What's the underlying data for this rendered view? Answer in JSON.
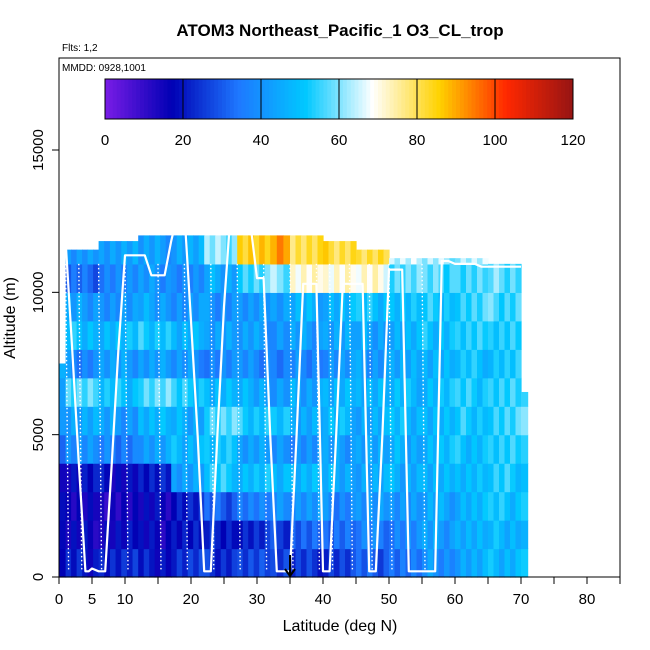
{
  "chart_data": {
    "type": "heatmap",
    "title": "ATOM3 Northeast_Pacific_1 O3_CL_trop",
    "annotations": [
      "Flts: 1,2",
      "MMDD: 0928,1001"
    ],
    "xlabel": "Latitude (deg N)",
    "ylabel": "Altitude (m)",
    "xlim": [
      0,
      85
    ],
    "ylim": [
      0,
      17500
    ],
    "x_ticks": [
      0,
      5,
      10,
      20,
      30,
      40,
      50,
      60,
      70,
      80
    ],
    "y_ticks": [
      0,
      5000,
      10000,
      15000
    ],
    "colorbar": {
      "range": [
        0,
        120
      ],
      "ticks": [
        0,
        20,
        40,
        60,
        80,
        100,
        120
      ],
      "colors": [
        "#7a1ce6",
        "#0000b4",
        "#1e78ff",
        "#00c8ff",
        "#ffffff",
        "#ffd200",
        "#ff2800",
        "#961414"
      ]
    },
    "marker": {
      "latitude": 35,
      "direction": "down"
    },
    "columns": [
      {
        "x0": 0,
        "x1": 1,
        "ytop": 7500,
        "profile": [
          22,
          18,
          14,
          16,
          28,
          44,
          40,
          50,
          52,
          48,
          40,
          34
        ]
      },
      {
        "x0": 1,
        "x1": 6,
        "ytop": 11500,
        "profile": [
          20,
          16,
          14,
          18,
          40,
          45,
          58,
          38,
          50,
          42,
          32,
          40
        ]
      },
      {
        "x0": 6,
        "x1": 12,
        "ytop": 11800,
        "profile": [
          22,
          18,
          14,
          18,
          36,
          42,
          50,
          42,
          48,
          40,
          38,
          44
        ]
      },
      {
        "x0": 12,
        "x1": 17,
        "ytop": 12500,
        "profile": [
          20,
          16,
          16,
          20,
          42,
          48,
          58,
          44,
          52,
          44,
          40,
          42
        ]
      },
      {
        "x0": 17,
        "x1": 22,
        "ytop": 12800,
        "profile": [
          24,
          20,
          22,
          44,
          48,
          46,
          52,
          40,
          46,
          40,
          38,
          45
        ]
      },
      {
        "x0": 22,
        "x1": 27,
        "ytop": 12800,
        "profile": [
          24,
          22,
          30,
          52,
          50,
          56,
          48,
          38,
          44,
          40,
          45,
          60
        ]
      },
      {
        "x0": 27,
        "x1": 32,
        "ytop": 12500,
        "profile": [
          26,
          22,
          36,
          50,
          44,
          52,
          46,
          38,
          42,
          40,
          55,
          85
        ]
      },
      {
        "x0": 32,
        "x1": 35,
        "ytop": 12400,
        "profile": [
          28,
          26,
          38,
          46,
          40,
          50,
          42,
          36,
          42,
          44,
          60,
          90
        ]
      },
      {
        "x0": 35,
        "x1": 40,
        "ytop": 12000,
        "profile": [
          24,
          30,
          40,
          48,
          40,
          46,
          44,
          38,
          42,
          46,
          70,
          80
        ]
      },
      {
        "x0": 40,
        "x1": 45,
        "ytop": 11800,
        "profile": [
          26,
          34,
          38,
          46,
          42,
          48,
          46,
          40,
          44,
          48,
          72,
          82
        ]
      },
      {
        "x0": 45,
        "x1": 50,
        "ytop": 11500,
        "profile": [
          30,
          36,
          40,
          44,
          44,
          46,
          48,
          42,
          44,
          50,
          70,
          80
        ]
      },
      {
        "x0": 50,
        "x1": 55,
        "ytop": 11200,
        "profile": [
          34,
          38,
          42,
          46,
          46,
          48,
          48,
          44,
          46,
          50,
          58,
          66
        ]
      },
      {
        "x0": 55,
        "x1": 60,
        "ytop": 11200,
        "profile": [
          40,
          42,
          44,
          46,
          48,
          48,
          50,
          48,
          50,
          52,
          56,
          62
        ]
      },
      {
        "x0": 60,
        "x1": 65,
        "ytop": 11200,
        "profile": [
          44,
          46,
          48,
          50,
          50,
          52,
          52,
          50,
          52,
          54,
          56,
          64
        ]
      },
      {
        "x0": 65,
        "x1": 70,
        "ytop": 11000,
        "profile": [
          48,
          48,
          50,
          52,
          52,
          54,
          54,
          52,
          54,
          56,
          58,
          62
        ]
      },
      {
        "x0": 70,
        "x1": 71,
        "ytop": 6500,
        "profile": [
          50,
          50,
          52,
          54,
          54,
          56,
          56,
          54,
          56,
          58,
          60,
          62
        ]
      }
    ],
    "flight_path": {
      "x": [
        0,
        0.5,
        1,
        2,
        3,
        4,
        4.5,
        5,
        6,
        7,
        8,
        9,
        10,
        11,
        12,
        13,
        14,
        15,
        16,
        17,
        18,
        19,
        20,
        21,
        22,
        23,
        24,
        25,
        26,
        27,
        28,
        29,
        30,
        31,
        32,
        33,
        34,
        35,
        36,
        37,
        38,
        39,
        40,
        41,
        42,
        43,
        44,
        45,
        46,
        47,
        48,
        49,
        50,
        51,
        52,
        53,
        54,
        55,
        56,
        57,
        58,
        59,
        60,
        61,
        62,
        63,
        64,
        65,
        66,
        67,
        68,
        69,
        70
      ],
      "y": [
        7500,
        11500,
        11800,
        8000,
        4000,
        200,
        200,
        300,
        200,
        200,
        4000,
        8000,
        11300,
        11300,
        11300,
        11300,
        10600,
        10600,
        10600,
        11800,
        12800,
        12800,
        9000,
        5000,
        200,
        200,
        5000,
        9500,
        12800,
        12800,
        12400,
        12400,
        10500,
        10500,
        5000,
        200,
        200,
        200,
        5000,
        10300,
        10300,
        10300,
        200,
        200,
        5000,
        10300,
        10300,
        10300,
        10300,
        200,
        200,
        5000,
        10800,
        10800,
        10800,
        200,
        200,
        200,
        200,
        200,
        11100,
        11100,
        11000,
        11000,
        11000,
        11000,
        10900,
        10900,
        10900,
        10900,
        10900,
        10900,
        10900
      ]
    },
    "vertical_profiles_x": [
      1,
      3,
      6,
      10,
      15,
      19,
      23,
      27,
      31,
      35,
      39,
      41,
      44,
      47,
      50,
      55
    ]
  }
}
